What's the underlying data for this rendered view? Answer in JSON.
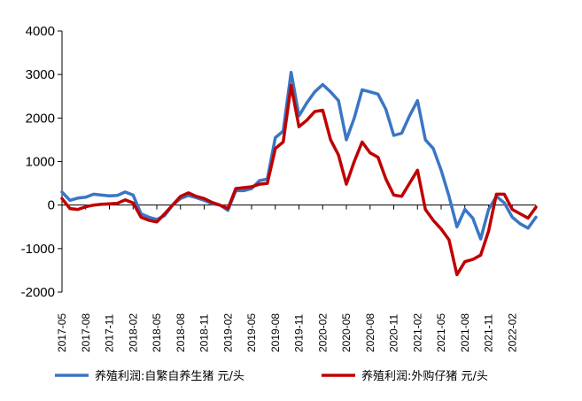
{
  "chart_data": {
    "type": "line",
    "title": "",
    "xlabel": "",
    "ylabel": "",
    "ylim": [
      -2000,
      4000
    ],
    "y_ticks": [
      4000,
      3000,
      2000,
      1000,
      0,
      -1000,
      -2000
    ],
    "y_tick_labels": [
      "4000",
      "3000",
      "2000",
      "1000",
      "0",
      "-1000",
      "-2000"
    ],
    "x_ticks": [
      "2017-05",
      "2017-08",
      "2017-11",
      "2018-02",
      "2018-05",
      "2018-08",
      "2018-11",
      "2019-02",
      "2019-05",
      "2019-08",
      "2019-11",
      "2020-02",
      "2020-05",
      "2020-08",
      "2020-11",
      "2021-02",
      "2021-05",
      "2021-08",
      "2021-11",
      "2022-02"
    ],
    "grid": false,
    "legend_position": "bottom",
    "series": [
      {
        "name": "养殖利润:自繁自养生猪 元/头",
        "color": "#3a76c4",
        "points": [
          [
            "2017-05",
            300
          ],
          [
            "2017-06",
            110
          ],
          [
            "2017-07",
            160
          ],
          [
            "2017-08",
            180
          ],
          [
            "2017-09",
            250
          ],
          [
            "2017-10",
            230
          ],
          [
            "2017-11",
            210
          ],
          [
            "2017-12",
            220
          ],
          [
            "2018-01",
            300
          ],
          [
            "2018-02",
            230
          ],
          [
            "2018-03",
            -200
          ],
          [
            "2018-04",
            -280
          ],
          [
            "2018-05",
            -330
          ],
          [
            "2018-06",
            -240
          ],
          [
            "2018-07",
            0
          ],
          [
            "2018-08",
            150
          ],
          [
            "2018-09",
            220
          ],
          [
            "2018-10",
            170
          ],
          [
            "2018-11",
            110
          ],
          [
            "2018-12",
            30
          ],
          [
            "2019-01",
            0
          ],
          [
            "2019-02",
            -120
          ],
          [
            "2019-03",
            330
          ],
          [
            "2019-04",
            330
          ],
          [
            "2019-05",
            380
          ],
          [
            "2019-06",
            560
          ],
          [
            "2019-07",
            600
          ],
          [
            "2019-08",
            1550
          ],
          [
            "2019-09",
            1700
          ],
          [
            "2019-10",
            3050
          ],
          [
            "2019-11",
            2050
          ],
          [
            "2019-12",
            2350
          ],
          [
            "2020-01",
            2600
          ],
          [
            "2020-02",
            2770
          ],
          [
            "2020-03",
            2600
          ],
          [
            "2020-04",
            2400
          ],
          [
            "2020-05",
            1500
          ],
          [
            "2020-06",
            2000
          ],
          [
            "2020-07",
            2650
          ],
          [
            "2020-08",
            2600
          ],
          [
            "2020-09",
            2550
          ],
          [
            "2020-10",
            2200
          ],
          [
            "2020-11",
            1600
          ],
          [
            "2020-12",
            1650
          ],
          [
            "2021-01",
            2050
          ],
          [
            "2021-02",
            2400
          ],
          [
            "2021-03",
            1500
          ],
          [
            "2021-04",
            1300
          ],
          [
            "2021-05",
            800
          ],
          [
            "2021-06",
            200
          ],
          [
            "2021-07",
            -500
          ],
          [
            "2021-08",
            -100
          ],
          [
            "2021-09",
            -300
          ],
          [
            "2021-10",
            -780
          ],
          [
            "2021-11",
            -100
          ],
          [
            "2021-12",
            200
          ],
          [
            "2022-01",
            50
          ],
          [
            "2022-02",
            -280
          ],
          [
            "2022-03",
            -430
          ],
          [
            "2022-04",
            -530
          ],
          [
            "2022-05",
            -280
          ]
        ]
      },
      {
        "name": "养殖利润:外购仔猪 元/头",
        "color": "#c00000",
        "points": [
          [
            "2017-05",
            150
          ],
          [
            "2017-06",
            -80
          ],
          [
            "2017-07",
            -100
          ],
          [
            "2017-08",
            -40
          ],
          [
            "2017-09",
            0
          ],
          [
            "2017-10",
            20
          ],
          [
            "2017-11",
            30
          ],
          [
            "2017-12",
            40
          ],
          [
            "2018-01",
            120
          ],
          [
            "2018-02",
            50
          ],
          [
            "2018-03",
            -280
          ],
          [
            "2018-04",
            -350
          ],
          [
            "2018-05",
            -390
          ],
          [
            "2018-06",
            -200
          ],
          [
            "2018-07",
            0
          ],
          [
            "2018-08",
            200
          ],
          [
            "2018-09",
            280
          ],
          [
            "2018-10",
            200
          ],
          [
            "2018-11",
            150
          ],
          [
            "2018-12",
            60
          ],
          [
            "2019-01",
            0
          ],
          [
            "2019-02",
            -80
          ],
          [
            "2019-03",
            380
          ],
          [
            "2019-04",
            400
          ],
          [
            "2019-05",
            420
          ],
          [
            "2019-06",
            480
          ],
          [
            "2019-07",
            500
          ],
          [
            "2019-08",
            1300
          ],
          [
            "2019-09",
            1450
          ],
          [
            "2019-10",
            2750
          ],
          [
            "2019-11",
            1800
          ],
          [
            "2019-12",
            1950
          ],
          [
            "2020-01",
            2150
          ],
          [
            "2020-02",
            2180
          ],
          [
            "2020-03",
            1500
          ],
          [
            "2020-04",
            1150
          ],
          [
            "2020-05",
            480
          ],
          [
            "2020-06",
            1000
          ],
          [
            "2020-07",
            1450
          ],
          [
            "2020-08",
            1200
          ],
          [
            "2020-09",
            1100
          ],
          [
            "2020-10",
            600
          ],
          [
            "2020-11",
            230
          ],
          [
            "2020-12",
            200
          ],
          [
            "2021-01",
            500
          ],
          [
            "2021-02",
            800
          ],
          [
            "2021-03",
            -100
          ],
          [
            "2021-04",
            -350
          ],
          [
            "2021-05",
            -550
          ],
          [
            "2021-06",
            -800
          ],
          [
            "2021-07",
            -1600
          ],
          [
            "2021-08",
            -1300
          ],
          [
            "2021-09",
            -1250
          ],
          [
            "2021-10",
            -1150
          ],
          [
            "2021-11",
            -600
          ],
          [
            "2021-12",
            250
          ],
          [
            "2022-01",
            250
          ],
          [
            "2022-02",
            -100
          ],
          [
            "2022-03",
            -200
          ],
          [
            "2022-04",
            -300
          ],
          [
            "2022-05",
            -50
          ]
        ]
      }
    ]
  }
}
